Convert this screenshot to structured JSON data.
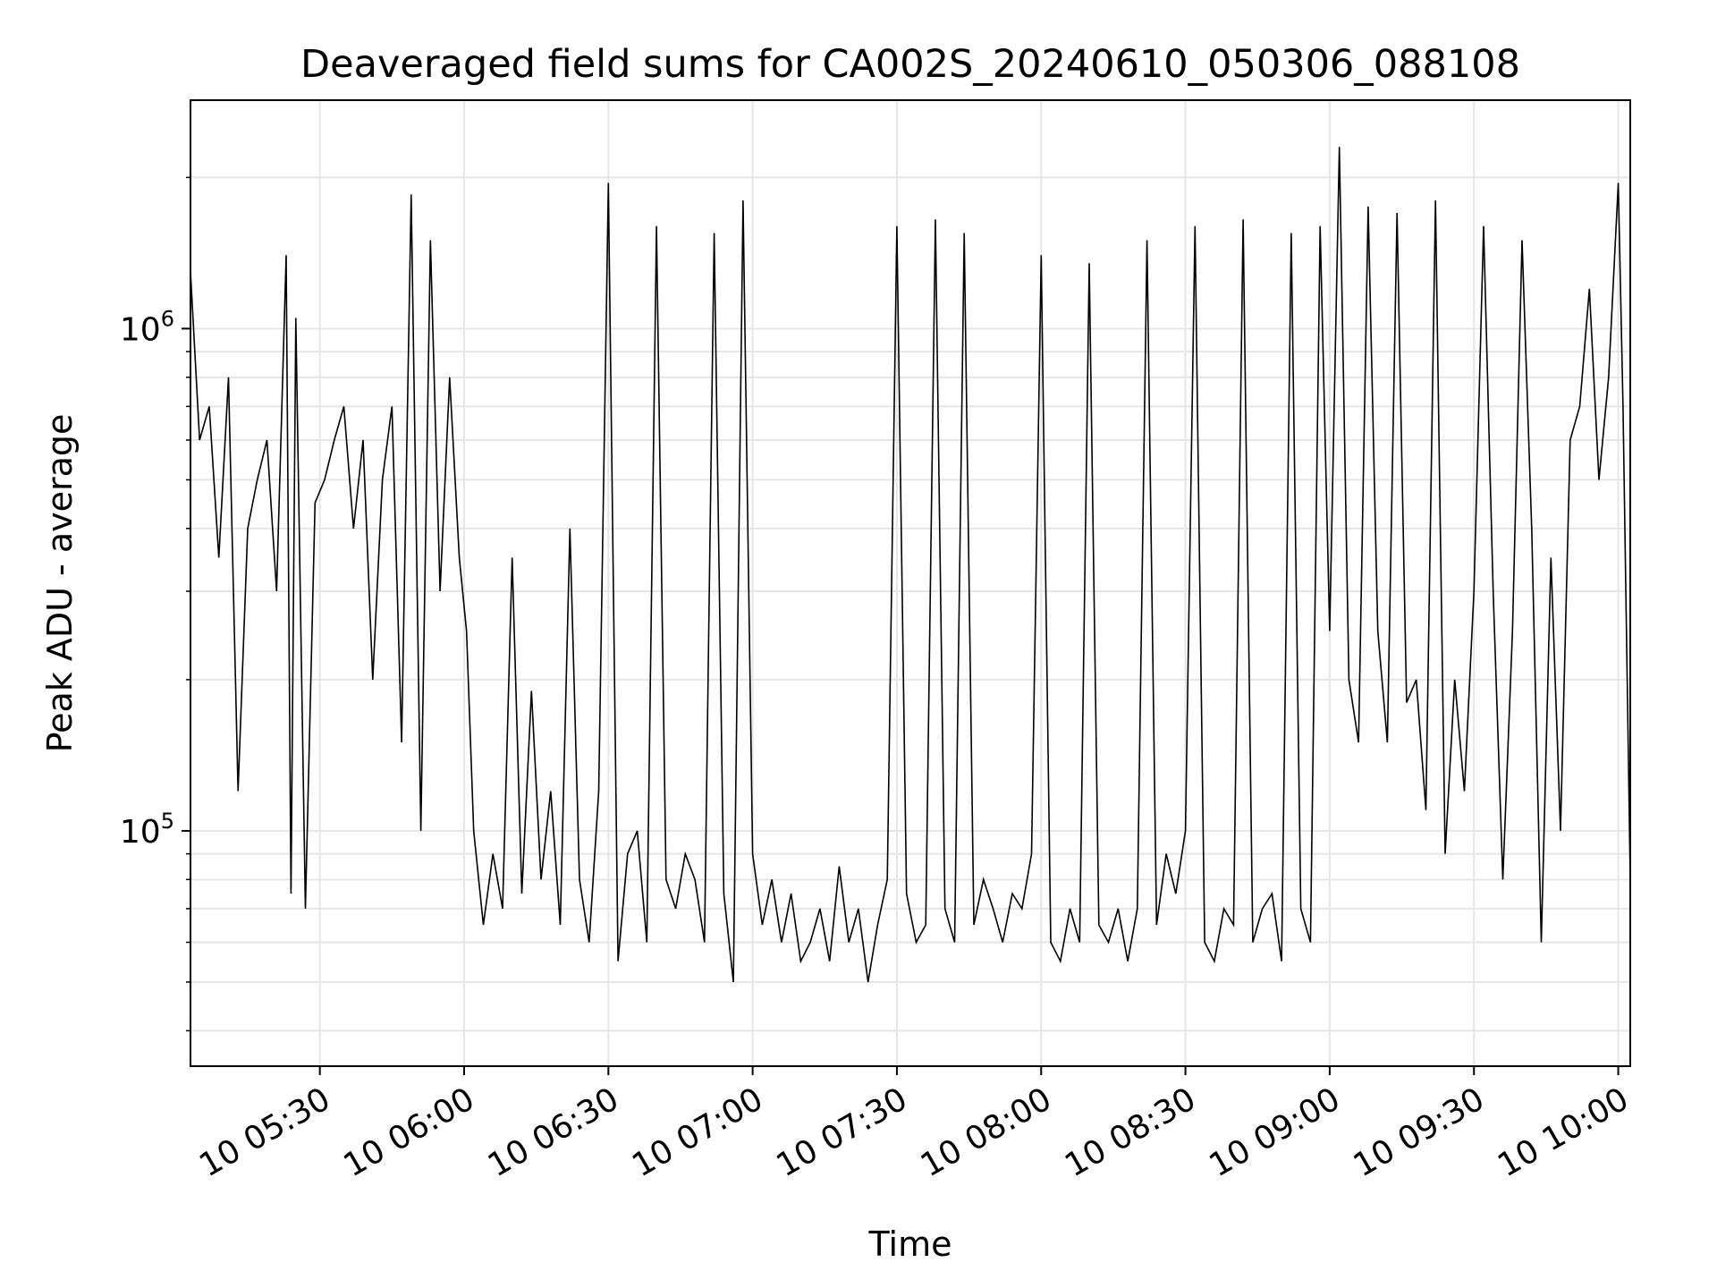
{
  "chart_data": {
    "type": "line",
    "title": "Deaveraged field sums for CA002S_20240610_050306_088108",
    "xlabel": "Time",
    "ylabel": "Peak ADU - average",
    "y_scale": "log",
    "ylim": [
      34000,
      2850000
    ],
    "xlim": [
      "2024-06-10 05:03:06",
      "2024-06-10 10:02:30"
    ],
    "grid": true,
    "line_color": "#000000",
    "x_ticks": [
      {
        "value": "2024-06-10 05:30",
        "label": "10 05:30"
      },
      {
        "value": "2024-06-10 06:00",
        "label": "10 06:00"
      },
      {
        "value": "2024-06-10 06:30",
        "label": "10 06:30"
      },
      {
        "value": "2024-06-10 07:00",
        "label": "10 07:00"
      },
      {
        "value": "2024-06-10 07:30",
        "label": "10 07:30"
      },
      {
        "value": "2024-06-10 08:00",
        "label": "10 08:00"
      },
      {
        "value": "2024-06-10 08:30",
        "label": "10 08:30"
      },
      {
        "value": "2024-06-10 09:00",
        "label": "10 09:00"
      },
      {
        "value": "2024-06-10 09:30",
        "label": "10 09:30"
      },
      {
        "value": "2024-06-10 10:00",
        "label": "10 10:00"
      }
    ],
    "y_ticks": [
      {
        "value": 100000,
        "base": "10",
        "exp": "5"
      },
      {
        "value": 1000000,
        "base": "10",
        "exp": "6"
      }
    ],
    "series": [
      {
        "x": [
          "2024-06-10 05:03:06",
          "2024-06-10 05:05:00",
          "2024-06-10 05:07:00",
          "2024-06-10 05:09:00",
          "2024-06-10 05:11:00",
          "2024-06-10 05:13:00",
          "2024-06-10 05:15:00",
          "2024-06-10 05:17:00",
          "2024-06-10 05:19:00",
          "2024-06-10 05:21:00",
          "2024-06-10 05:23:00",
          "2024-06-10 05:24:00",
          "2024-06-10 05:25:00",
          "2024-06-10 05:27:00",
          "2024-06-10 05:29:00",
          "2024-06-10 05:31:00",
          "2024-06-10 05:33:00",
          "2024-06-10 05:35:00",
          "2024-06-10 05:37:00",
          "2024-06-10 05:39:00",
          "2024-06-10 05:41:00",
          "2024-06-10 05:43:00",
          "2024-06-10 05:45:00",
          "2024-06-10 05:47:00",
          "2024-06-10 05:49:00",
          "2024-06-10 05:51:00",
          "2024-06-10 05:53:00",
          "2024-06-10 05:55:00",
          "2024-06-10 05:57:00",
          "2024-06-10 05:59:00",
          "2024-06-10 06:00:30",
          "2024-06-10 06:02:00",
          "2024-06-10 06:04:00",
          "2024-06-10 06:06:00",
          "2024-06-10 06:08:00",
          "2024-06-10 06:10:00",
          "2024-06-10 06:12:00",
          "2024-06-10 06:14:00",
          "2024-06-10 06:16:00",
          "2024-06-10 06:18:00",
          "2024-06-10 06:20:00",
          "2024-06-10 06:22:00",
          "2024-06-10 06:24:00",
          "2024-06-10 06:26:00",
          "2024-06-10 06:28:00",
          "2024-06-10 06:30:00",
          "2024-06-10 06:32:00",
          "2024-06-10 06:34:00",
          "2024-06-10 06:36:00",
          "2024-06-10 06:38:00",
          "2024-06-10 06:40:00",
          "2024-06-10 06:42:00",
          "2024-06-10 06:44:00",
          "2024-06-10 06:46:00",
          "2024-06-10 06:48:00",
          "2024-06-10 06:50:00",
          "2024-06-10 06:52:00",
          "2024-06-10 06:54:00",
          "2024-06-10 06:56:00",
          "2024-06-10 06:58:00",
          "2024-06-10 07:00:00",
          "2024-06-10 07:02:00",
          "2024-06-10 07:04:00",
          "2024-06-10 07:06:00",
          "2024-06-10 07:08:00",
          "2024-06-10 07:10:00",
          "2024-06-10 07:12:00",
          "2024-06-10 07:14:00",
          "2024-06-10 07:16:00",
          "2024-06-10 07:18:00",
          "2024-06-10 07:20:00",
          "2024-06-10 07:22:00",
          "2024-06-10 07:24:00",
          "2024-06-10 07:26:00",
          "2024-06-10 07:28:00",
          "2024-06-10 07:30:00",
          "2024-06-10 07:32:00",
          "2024-06-10 07:34:00",
          "2024-06-10 07:36:00",
          "2024-06-10 07:38:00",
          "2024-06-10 07:40:00",
          "2024-06-10 07:42:00",
          "2024-06-10 07:44:00",
          "2024-06-10 07:46:00",
          "2024-06-10 07:48:00",
          "2024-06-10 07:50:00",
          "2024-06-10 07:52:00",
          "2024-06-10 07:54:00",
          "2024-06-10 07:56:00",
          "2024-06-10 07:58:00",
          "2024-06-10 08:00:00",
          "2024-06-10 08:02:00",
          "2024-06-10 08:04:00",
          "2024-06-10 08:06:00",
          "2024-06-10 08:08:00",
          "2024-06-10 08:10:00",
          "2024-06-10 08:12:00",
          "2024-06-10 08:14:00",
          "2024-06-10 08:16:00",
          "2024-06-10 08:18:00",
          "2024-06-10 08:20:00",
          "2024-06-10 08:22:00",
          "2024-06-10 08:24:00",
          "2024-06-10 08:26:00",
          "2024-06-10 08:28:00",
          "2024-06-10 08:30:00",
          "2024-06-10 08:32:00",
          "2024-06-10 08:34:00",
          "2024-06-10 08:36:00",
          "2024-06-10 08:38:00",
          "2024-06-10 08:40:00",
          "2024-06-10 08:42:00",
          "2024-06-10 08:44:00",
          "2024-06-10 08:46:00",
          "2024-06-10 08:48:00",
          "2024-06-10 08:50:00",
          "2024-06-10 08:52:00",
          "2024-06-10 08:54:00",
          "2024-06-10 08:56:00",
          "2024-06-10 08:58:00",
          "2024-06-10 09:00:00",
          "2024-06-10 09:02:00",
          "2024-06-10 09:04:00",
          "2024-06-10 09:06:00",
          "2024-06-10 09:08:00",
          "2024-06-10 09:10:00",
          "2024-06-10 09:12:00",
          "2024-06-10 09:14:00",
          "2024-06-10 09:16:00",
          "2024-06-10 09:18:00",
          "2024-06-10 09:20:00",
          "2024-06-10 09:22:00",
          "2024-06-10 09:24:00",
          "2024-06-10 09:26:00",
          "2024-06-10 09:28:00",
          "2024-06-10 09:30:00",
          "2024-06-10 09:32:00",
          "2024-06-10 09:34:00",
          "2024-06-10 09:36:00",
          "2024-06-10 09:38:00",
          "2024-06-10 09:40:00",
          "2024-06-10 09:42:00",
          "2024-06-10 09:44:00",
          "2024-06-10 09:46:00",
          "2024-06-10 09:48:00",
          "2024-06-10 09:50:00",
          "2024-06-10 09:52:00",
          "2024-06-10 09:54:00",
          "2024-06-10 09:56:00",
          "2024-06-10 09:58:00",
          "2024-06-10 10:00:00",
          "2024-06-10 10:01:00",
          "2024-06-10 10:02:30"
        ],
        "y": [
          1300000,
          600000,
          700000,
          350000,
          800000,
          120000,
          400000,
          500000,
          600000,
          300000,
          1400000,
          75000,
          1050000,
          70000,
          450000,
          500000,
          600000,
          700000,
          400000,
          600000,
          200000,
          500000,
          700000,
          150000,
          1850000,
          100000,
          1500000,
          300000,
          800000,
          350000,
          250000,
          100000,
          65000,
          90000,
          70000,
          350000,
          75000,
          190000,
          80000,
          120000,
          65000,
          400000,
          80000,
          60000,
          120000,
          1950000,
          55000,
          90000,
          100000,
          60000,
          1600000,
          80000,
          70000,
          90000,
          80000,
          60000,
          1550000,
          75000,
          50000,
          1800000,
          90000,
          65000,
          80000,
          60000,
          75000,
          55000,
          60000,
          70000,
          55000,
          85000,
          60000,
          70000,
          50000,
          65000,
          80000,
          1600000,
          75000,
          60000,
          65000,
          1650000,
          70000,
          60000,
          1550000,
          65000,
          80000,
          70000,
          60000,
          75000,
          70000,
          90000,
          1400000,
          60000,
          55000,
          70000,
          60000,
          1350000,
          65000,
          60000,
          70000,
          55000,
          70000,
          1500000,
          65000,
          90000,
          75000,
          100000,
          1600000,
          60000,
          55000,
          70000,
          65000,
          1650000,
          60000,
          70000,
          75000,
          55000,
          1550000,
          70000,
          60000,
          1600000,
          250000,
          2300000,
          200000,
          150000,
          1750000,
          250000,
          150000,
          1700000,
          180000,
          200000,
          110000,
          1800000,
          90000,
          200000,
          120000,
          300000,
          1600000,
          300000,
          80000,
          250000,
          1500000,
          400000,
          60000,
          350000,
          100000,
          600000,
          700000,
          1200000,
          500000,
          800000,
          1950000,
          700000,
          80000
        ]
      }
    ]
  }
}
